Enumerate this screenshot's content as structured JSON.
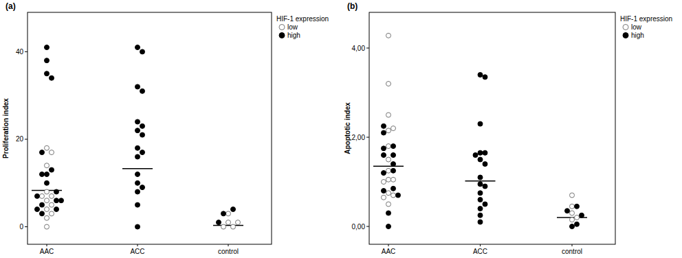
{
  "chart_data": [
    {
      "type": "scatter",
      "title": "(a)",
      "y_label": "Proliferation index",
      "categories": [
        "AAC",
        "ACC",
        "control"
      ],
      "ylim": [
        -4,
        49
      ],
      "yticks": [
        0,
        20,
        40
      ],
      "legend_title": "HIF-1 expression",
      "legend": "right",
      "series": [
        {
          "name": "low",
          "color": "#ffffff",
          "marker": "open-circle",
          "x": [
            "AAC",
            "AAC",
            "AAC",
            "AAC",
            "AAC",
            "AAC",
            "AAC",
            "AAC",
            "AAC",
            "AAC",
            "AAC",
            "AAC",
            "control",
            "control",
            "control",
            "control",
            "control"
          ],
          "values": [
            18,
            17,
            14,
            8,
            7,
            7,
            6,
            5,
            4,
            3,
            2,
            0,
            1,
            0,
            0,
            3,
            1
          ]
        },
        {
          "name": "high",
          "color": "#000000",
          "marker": "circle",
          "x": [
            "AAC",
            "AAC",
            "AAC",
            "AAC",
            "AAC",
            "AAC",
            "AAC",
            "AAC",
            "AAC",
            "AAC",
            "AAC",
            "AAC",
            "AAC",
            "AAC",
            "AAC",
            "AAC",
            "AAC",
            "ACC",
            "ACC",
            "ACC",
            "ACC",
            "ACC",
            "ACC",
            "ACC",
            "ACC",
            "ACC",
            "ACC",
            "ACC",
            "ACC",
            "ACC",
            "ACC",
            "ACC",
            "ACC",
            "ACC",
            "control",
            "control",
            "control"
          ],
          "values": [
            41,
            38,
            35,
            34,
            17,
            13,
            12,
            12,
            10,
            8,
            7,
            6,
            5,
            4,
            4,
            3,
            6,
            41,
            40,
            32,
            31,
            24,
            23,
            22,
            21,
            18,
            17,
            16,
            12,
            10,
            8,
            9,
            5,
            0,
            4,
            3,
            1
          ]
        }
      ],
      "medians": [
        8.3,
        13.3,
        0.3
      ]
    },
    {
      "type": "scatter",
      "title": "(b)",
      "y_label": "Apoptotic index",
      "categories": [
        "AAC",
        "ACC",
        "control"
      ],
      "ylim": [
        -0.4,
        4.8
      ],
      "yticks": [
        {
          "value": 0,
          "label": "0,00"
        },
        {
          "value": 2,
          "label": "2,00"
        },
        {
          "value": 4,
          "label": "4,00"
        }
      ],
      "legend_title": "HIF-1 expression",
      "legend": "right",
      "series": [
        {
          "name": "low",
          "color": "#ffffff",
          "marker": "open-circle",
          "x": [
            "AAC",
            "AAC",
            "AAC",
            "AAC",
            "AAC",
            "AAC",
            "AAC",
            "AAC",
            "AAC",
            "AAC",
            "AAC",
            "AAC",
            "AAC",
            "AAC",
            "AAC",
            "control",
            "control",
            "control",
            "control",
            "control"
          ],
          "values": [
            4.28,
            3.2,
            2.5,
            2.15,
            2.2,
            1.8,
            1.5,
            1.25,
            1.05,
            1.05,
            1.0,
            0.75,
            0.7,
            0.65,
            0.5,
            0.7,
            0.45,
            0.3,
            0.2,
            0.15
          ]
        },
        {
          "name": "high",
          "color": "#000000",
          "marker": "circle",
          "x": [
            "AAC",
            "AAC",
            "AAC",
            "AAC",
            "AAC",
            "AAC",
            "AAC",
            "AAC",
            "AAC",
            "AAC",
            "AAC",
            "AAC",
            "AAC",
            "AAC",
            "ACC",
            "ACC",
            "ACC",
            "ACC",
            "ACC",
            "ACC",
            "ACC",
            "ACC",
            "ACC",
            "ACC",
            "ACC",
            "ACC",
            "ACC",
            "ACC",
            "ACC",
            "ACC",
            "ACC",
            "control",
            "control",
            "control",
            "control",
            "control"
          ],
          "values": [
            2.25,
            2.1,
            1.8,
            1.75,
            1.6,
            1.6,
            1.25,
            1.2,
            0.85,
            0.8,
            0.7,
            0.3,
            0.0,
            1.4,
            3.4,
            3.35,
            2.3,
            1.65,
            1.65,
            1.6,
            1.5,
            1.4,
            1.1,
            0.95,
            0.9,
            0.75,
            0.6,
            0.5,
            0.25,
            0.4,
            0.1,
            0.45,
            0.35,
            0.25,
            0.0,
            0.05
          ]
        }
      ],
      "medians": [
        1.35,
        1.02,
        0.2
      ]
    }
  ]
}
